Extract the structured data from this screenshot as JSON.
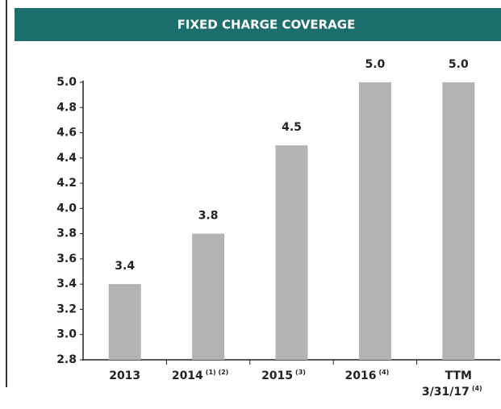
{
  "chart_data": {
    "type": "bar",
    "title": "FIXED CHARGE COVERAGE",
    "categories": [
      "2013",
      "2014",
      "2015",
      "2016",
      "TTM 3/31/17"
    ],
    "category_notes": [
      null,
      "(1) (2)",
      "(3)",
      "(4)",
      "(4)"
    ],
    "values": [
      3.4,
      3.8,
      4.5,
      5.0,
      5.0
    ],
    "value_labels": [
      "3.4",
      "3.8",
      "4.5",
      "5.0",
      "5.0"
    ],
    "color": "#b3b3b3",
    "ylim": [
      2.8,
      5.0
    ],
    "yticks": [
      2.8,
      {
        "value": 3.0,
        "label": "3.0"
      },
      3.2,
      3.4,
      3.6,
      3.8,
      {
        "value": 4.0,
        "label": "4.0"
      },
      4.2,
      4.4,
      4.6,
      4.8,
      {
        "value": 5.0,
        "label": "5.0"
      }
    ]
  }
}
